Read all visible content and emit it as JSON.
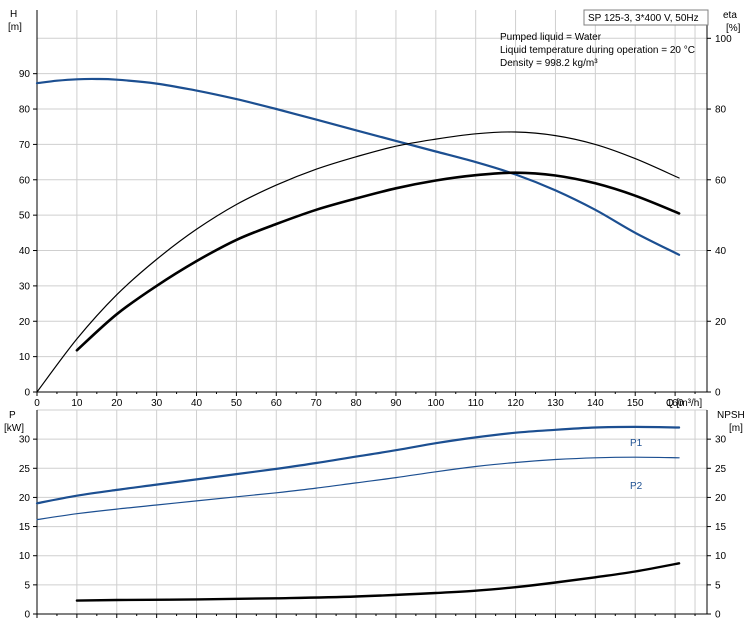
{
  "colors": {
    "blue": "#1c4f91",
    "black": "#000000",
    "grid": "#cfcfcf",
    "box_border": "#808080"
  },
  "legend_box": {
    "model": "SP 125-3, 3*400 V, 50Hz",
    "liquid": "Pumped liquid = Water",
    "temperature": "Liquid temperature during operation = 20 °C",
    "density": "Density = 998.2 kg/m³"
  },
  "chart_data": [
    {
      "type": "line",
      "panel": "top",
      "grid": true,
      "xlabel": "Q [m³/h]",
      "xlim": [
        0,
        168
      ],
      "x_ticks": [
        0,
        10,
        20,
        30,
        40,
        50,
        60,
        70,
        80,
        90,
        100,
        110,
        120,
        130,
        140,
        150,
        160
      ],
      "left_axis": {
        "label_line1": "H",
        "label_line2": "[m]",
        "lim": [
          0,
          108
        ],
        "ticks": [
          0,
          10,
          20,
          30,
          40,
          50,
          60,
          70,
          80,
          90
        ]
      },
      "right_axis": {
        "label_line1": "eta",
        "label_line2": "[%]",
        "lim": [
          0,
          108
        ],
        "ticks": [
          0,
          20,
          40,
          60,
          80,
          100
        ],
        "tick_labels": [
          "0",
          "20",
          "40",
          "60",
          "80",
          "100"
        ]
      },
      "series": [
        {
          "axis": "left",
          "color": "#1c4f91",
          "width": 2.2,
          "points": [
            [
              0,
              87.3
            ],
            [
              5,
              88.0
            ],
            [
              10,
              88.4
            ],
            [
              15,
              88.5
            ],
            [
              20,
              88.3
            ],
            [
              30,
              87.2
            ],
            [
              40,
              85.2
            ],
            [
              50,
              82.8
            ],
            [
              60,
              80.0
            ],
            [
              70,
              77.0
            ],
            [
              80,
              74.0
            ],
            [
              90,
              71.0
            ],
            [
              100,
              68.0
            ],
            [
              110,
              65.0
            ],
            [
              120,
              61.5
            ],
            [
              130,
              57.0
            ],
            [
              140,
              51.5
            ],
            [
              150,
              45.0
            ],
            [
              161,
              38.8
            ]
          ]
        },
        {
          "axis": "right",
          "color": "#000000",
          "width": 1.2,
          "points": [
            [
              0,
              0
            ],
            [
              10,
              15.0
            ],
            [
              20,
              27.5
            ],
            [
              30,
              37.5
            ],
            [
              40,
              46.0
            ],
            [
              50,
              53.0
            ],
            [
              60,
              58.5
            ],
            [
              70,
              63.0
            ],
            [
              80,
              66.5
            ],
            [
              90,
              69.5
            ],
            [
              100,
              71.5
            ],
            [
              110,
              73.0
            ],
            [
              120,
              73.5
            ],
            [
              130,
              72.5
            ],
            [
              140,
              70.0
            ],
            [
              150,
              66.0
            ],
            [
              161,
              60.5
            ]
          ]
        },
        {
          "axis": "right",
          "color": "#000000",
          "width": 2.6,
          "points": [
            [
              10,
              11.8
            ],
            [
              20,
              22.0
            ],
            [
              30,
              30.0
            ],
            [
              40,
              37.0
            ],
            [
              50,
              43.0
            ],
            [
              60,
              47.5
            ],
            [
              70,
              51.5
            ],
            [
              80,
              54.7
            ],
            [
              90,
              57.6
            ],
            [
              100,
              59.8
            ],
            [
              110,
              61.3
            ],
            [
              120,
              62.0
            ],
            [
              130,
              61.2
            ],
            [
              140,
              59.0
            ],
            [
              150,
              55.5
            ],
            [
              161,
              50.5
            ]
          ]
        }
      ]
    },
    {
      "type": "line",
      "panel": "bottom",
      "grid": true,
      "xlim": [
        0,
        168
      ],
      "x_ticks": [
        0,
        10,
        20,
        30,
        40,
        50,
        60,
        70,
        80,
        90,
        100,
        110,
        120,
        130,
        140,
        150,
        160
      ],
      "left_axis": {
        "label_line1": "P",
        "label_line2": "[kW]",
        "lim": [
          0,
          35
        ],
        "ticks": [
          0,
          5,
          10,
          15,
          20,
          25,
          30
        ]
      },
      "right_axis": {
        "label_line1": "NPSH",
        "label_line2": "[m]",
        "lim": [
          0,
          35
        ],
        "ticks": [
          0,
          5,
          10,
          15,
          20,
          25,
          30
        ]
      },
      "series": [
        {
          "name": "P1",
          "axis": "left",
          "color": "#1c4f91",
          "width": 2.2,
          "points": [
            [
              0,
              19.0
            ],
            [
              10,
              20.3
            ],
            [
              20,
              21.3
            ],
            [
              30,
              22.2
            ],
            [
              40,
              23.1
            ],
            [
              50,
              24.0
            ],
            [
              60,
              24.9
            ],
            [
              70,
              25.9
            ],
            [
              80,
              27.0
            ],
            [
              90,
              28.1
            ],
            [
              100,
              29.3
            ],
            [
              110,
              30.3
            ],
            [
              120,
              31.1
            ],
            [
              130,
              31.6
            ],
            [
              140,
              32.0
            ],
            [
              150,
              32.1
            ],
            [
              161,
              32.0
            ]
          ]
        },
        {
          "name": "P2",
          "axis": "left",
          "color": "#1c4f91",
          "width": 1.2,
          "points": [
            [
              0,
              16.2
            ],
            [
              10,
              17.2
            ],
            [
              20,
              18.0
            ],
            [
              30,
              18.7
            ],
            [
              40,
              19.4
            ],
            [
              50,
              20.1
            ],
            [
              60,
              20.8
            ],
            [
              70,
              21.6
            ],
            [
              80,
              22.5
            ],
            [
              90,
              23.4
            ],
            [
              100,
              24.4
            ],
            [
              110,
              25.3
            ],
            [
              120,
              26.0
            ],
            [
              130,
              26.5
            ],
            [
              140,
              26.8
            ],
            [
              150,
              26.9
            ],
            [
              161,
              26.8
            ]
          ]
        },
        {
          "axis": "right",
          "color": "#000000",
          "width": 2.4,
          "points": [
            [
              10,
              2.3
            ],
            [
              20,
              2.4
            ],
            [
              40,
              2.5
            ],
            [
              60,
              2.7
            ],
            [
              80,
              3.0
            ],
            [
              100,
              3.6
            ],
            [
              110,
              4.0
            ],
            [
              120,
              4.6
            ],
            [
              130,
              5.4
            ],
            [
              140,
              6.3
            ],
            [
              150,
              7.3
            ],
            [
              161,
              8.7
            ]
          ]
        }
      ]
    }
  ]
}
